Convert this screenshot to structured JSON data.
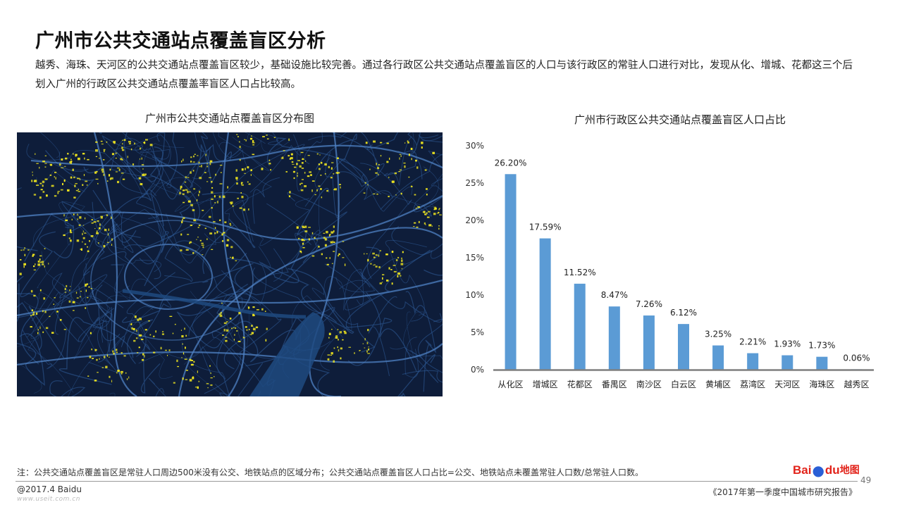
{
  "title": "广州市公共交通站点覆盖盲区分析",
  "intro": "越秀、海珠、天河区的公共交通站点覆盖盲区较少，基础设施比较完善。通过各行政区公共交通站点覆盖盲区的人口与该行政区的常驻人口进行对比，发现从化、增城、花都这三个后划入广州的行政区公共交通站点覆盖率盲区人口占比较高。",
  "map": {
    "title": "广州市公共交通站点覆盖盲区分布图",
    "background_color": "#0e1d3a",
    "road_color": "#2f5c9a",
    "blindspot_color": "#f2e81e"
  },
  "chart_data": {
    "type": "bar",
    "title": "广州市行政区公共交通站点覆盖盲区人口占比",
    "categories": [
      "从化区",
      "增城区",
      "花都区",
      "番禺区",
      "南沙区",
      "白云区",
      "黄埔区",
      "荔湾区",
      "天河区",
      "海珠区",
      "越秀区"
    ],
    "values": [
      26.2,
      17.59,
      11.52,
      8.47,
      7.26,
      6.12,
      3.25,
      2.21,
      1.93,
      1.73,
      0.06
    ],
    "value_labels": [
      "26.20%",
      "17.59%",
      "11.52%",
      "8.47%",
      "7.26%",
      "6.12%",
      "3.25%",
      "2.21%",
      "1.93%",
      "1.73%",
      "0.06%"
    ],
    "y_ticks": [
      "0%",
      "5%",
      "10%",
      "15%",
      "20%",
      "25%",
      "30%"
    ],
    "ylim": [
      0,
      30
    ],
    "xlabel": "",
    "ylabel": "",
    "grid": false,
    "bar_color": "#5b9bd5"
  },
  "footer": {
    "note": "注：公共交通站点覆盖盲区是常驻人口周边500米没有公交、地铁站点的区域分布；公共交通站点覆盖盲区人口占比=公交、地铁站点未覆盖常驻人口数/总常驻人口数。",
    "logo_text": "Bai",
    "logo_du": "du",
    "logo_map": "地图",
    "page": "49",
    "copyright": "@2017.4 Baidu",
    "watermark": "www.useit.com.cn",
    "report": "《2017年第一季度中国城市研究报告》"
  }
}
